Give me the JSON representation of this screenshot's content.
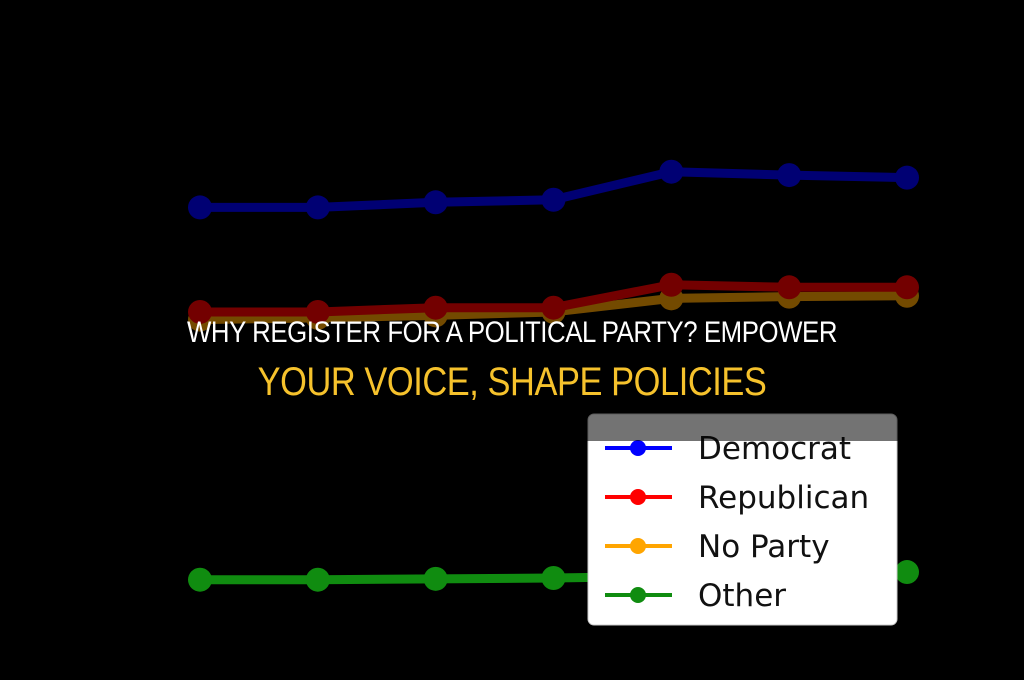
{
  "headline": {
    "line1": "WHY REGISTER FOR A POLITICAL PARTY? EMPOWER",
    "line2": "YOUR VOICE, SHAPE POLICIES",
    "line1_color": "#ffffff",
    "line2_color": "#f6c22c"
  },
  "chart_data": {
    "type": "line",
    "title": "",
    "xlabel": "",
    "ylabel": "",
    "x": [
      1,
      2,
      3,
      4,
      5,
      6,
      7
    ],
    "ylim": [
      0,
      6
    ],
    "grid": false,
    "legend_placement": "lower-right",
    "series": [
      {
        "name": "Democrat",
        "color": "#0000ff",
        "values": [
          4.56,
          4.56,
          4.62,
          4.65,
          4.98,
          4.94,
          4.91
        ]
      },
      {
        "name": "Republican",
        "color": "#ff0000",
        "values": [
          3.33,
          3.33,
          3.38,
          3.38,
          3.65,
          3.62,
          3.62
        ]
      },
      {
        "name": "No Party",
        "color": "#ffa500",
        "values": [
          3.24,
          3.26,
          3.29,
          3.33,
          3.49,
          3.51,
          3.52
        ]
      },
      {
        "name": "Other",
        "color": "#108c10",
        "values": [
          0.18,
          0.18,
          0.19,
          0.2,
          0.22,
          0.22,
          0.27
        ]
      }
    ]
  }
}
